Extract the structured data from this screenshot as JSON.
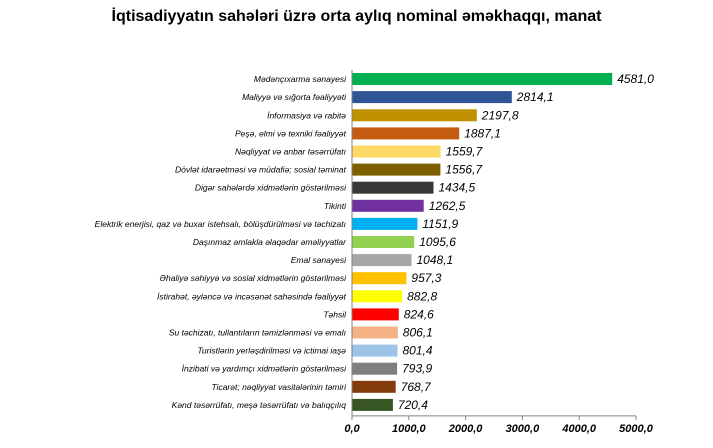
{
  "chart_data": {
    "type": "bar",
    "orientation": "horizontal",
    "title": "İqtisadiyyatın sahələri üzrə orta aylıq nominal əməkhaqqı, manat",
    "xlabel": "",
    "ylabel": "",
    "xlim": [
      0,
      5000
    ],
    "x_ticks": [
      "0,0",
      "1000,0",
      "2000,0",
      "3000,0",
      "4000,0",
      "5000,0"
    ],
    "grid": false,
    "legend": "none",
    "categories": [
      "Mədənçıxarma  sənayesi",
      "Maliyyə və sığorta fəaliyyəti",
      "İnformasiya  və rabitə",
      "Peşə, elmi  və texniki fəaliyyət",
      "Nəqliyyat və anbar təsərrüfatı",
      "Dövlət idarəetməsi  və müdafiə;  sosial təminat",
      "Digər sahələrdə xidmətlərin  göstərilməsi",
      "Tikinti",
      "Elektrik enerjisi, qaz və buxar istehsalı, bölüşdürülməsi  və təchizatı",
      "Daşınmaz  əmlakla əlaqədar əməliyyatlar",
      "Emal  sənayesi",
      "Əhaliyə səhiyyə və sosial xidmətlərin göstərilməsi",
      "İstirahət, əyləncə və incəsənət sahəsində fəaliyyət",
      "Təhsil",
      "Su təchizatı, tullantıların təmizlənməsi  və emalı",
      "Turistlərin yerləşdirilməsi və ictimai iaşə",
      "İnzibati və yardımçı xidmətlərin  göstərilməsi",
      "Ticarət;  nəqliyyat vasitələrinin təmiri",
      "Kənd təsərrüfatı, meşə təsərrüfatı və balıqçılıq"
    ],
    "values": [
      4581.0,
      2814.1,
      2197.8,
      1887.1,
      1559.7,
      1556.7,
      1434.5,
      1262.5,
      1151.9,
      1095.6,
      1048.1,
      957.3,
      882.8,
      824.6,
      806.1,
      801.4,
      793.9,
      768.7,
      720.4
    ],
    "value_labels": [
      "4581,0",
      "2814,1",
      "2197,8",
      "1887,1",
      "1559,7",
      "1556,7",
      "1434,5",
      "1262,5",
      "1151,9",
      "1095,6",
      "1048,1",
      "957,3",
      "882,8",
      "824,6",
      "806,1",
      "801,4",
      "793,9",
      "768,7",
      "720,4"
    ],
    "colors": [
      "#00b050",
      "#2f5597",
      "#bf9000",
      "#c55a11",
      "#ffd966",
      "#7f6000",
      "#3b3838",
      "#7030a0",
      "#00b0f0",
      "#92d050",
      "#a6a6a6",
      "#ffc000",
      "#ffff00",
      "#ff0000",
      "#f4b183",
      "#9dc3e6",
      "#7f7f7f",
      "#843c0c",
      "#375623"
    ]
  }
}
